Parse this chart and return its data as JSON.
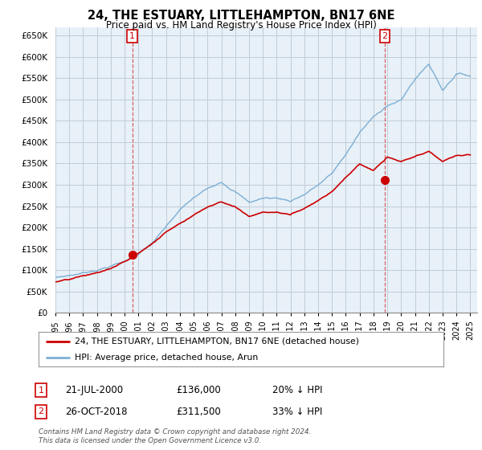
{
  "title": "24, THE ESTUARY, LITTLEHAMPTON, BN17 6NE",
  "subtitle": "Price paid vs. HM Land Registry's House Price Index (HPI)",
  "background_color": "#ffffff",
  "plot_bg_color": "#e8f0f8",
  "grid_color": "#c0ccd8",
  "hpi_color": "#7bafd4",
  "price_color": "#cc0000",
  "marker_color": "#cc0000",
  "ylim": [
    0,
    670000
  ],
  "yticks": [
    0,
    50000,
    100000,
    150000,
    200000,
    250000,
    300000,
    350000,
    400000,
    450000,
    500000,
    550000,
    600000,
    650000
  ],
  "ytick_labels": [
    "£0",
    "£50K",
    "£100K",
    "£150K",
    "£200K",
    "£250K",
    "£300K",
    "£350K",
    "£400K",
    "£450K",
    "£500K",
    "£550K",
    "£600K",
    "£650K"
  ],
  "sale1_date": 2000.55,
  "sale1_price": 136000,
  "sale2_date": 2018.82,
  "sale2_price": 311500,
  "legend_line1": "24, THE ESTUARY, LITTLEHAMPTON, BN17 6NE (detached house)",
  "legend_line2": "HPI: Average price, detached house, Arun",
  "note1_label": "1",
  "note1_date": "21-JUL-2000",
  "note1_price": "£136,000",
  "note1_hpi": "20% ↓ HPI",
  "note2_label": "2",
  "note2_date": "26-OCT-2018",
  "note2_price": "£311,500",
  "note2_hpi": "33% ↓ HPI",
  "footer": "Contains HM Land Registry data © Crown copyright and database right 2024.\nThis data is licensed under the Open Government Licence v3.0.",
  "xmin": 1995.0,
  "xmax": 2025.5,
  "xticks": [
    1995,
    1996,
    1997,
    1998,
    1999,
    2000,
    2001,
    2002,
    2003,
    2004,
    2005,
    2006,
    2007,
    2008,
    2009,
    2010,
    2011,
    2012,
    2013,
    2014,
    2015,
    2016,
    2017,
    2018,
    2019,
    2020,
    2021,
    2022,
    2023,
    2024,
    2025
  ],
  "hpi_years": [
    1995,
    1996,
    1997,
    1998,
    1999,
    2000,
    2001,
    2002,
    2003,
    2004,
    2005,
    2006,
    2007,
    2008,
    2009,
    2010,
    2011,
    2012,
    2013,
    2014,
    2015,
    2016,
    2017,
    2018,
    2019,
    2020,
    2021,
    2022,
    2023,
    2024,
    2025
  ],
  "hpi_vals": [
    83000,
    88000,
    94000,
    102000,
    112000,
    122000,
    140000,
    165000,
    200000,
    238000,
    265000,
    285000,
    305000,
    285000,
    258000,
    268000,
    268000,
    262000,
    278000,
    300000,
    325000,
    370000,
    420000,
    455000,
    485000,
    495000,
    545000,
    580000,
    520000,
    560000,
    555000
  ],
  "red_years": [
    1995,
    1996,
    1997,
    1998,
    1999,
    2000,
    2001,
    2002,
    2003,
    2004,
    2005,
    2006,
    2007,
    2008,
    2009,
    2010,
    2011,
    2012,
    2013,
    2014,
    2015,
    2016,
    2017,
    2018,
    2019,
    2020,
    2021,
    2022,
    2023,
    2024,
    2025
  ],
  "red_vals": [
    72000,
    76000,
    83000,
    90000,
    100000,
    115000,
    135000,
    158000,
    185000,
    208000,
    228000,
    248000,
    262000,
    250000,
    228000,
    238000,
    238000,
    232000,
    248000,
    268000,
    290000,
    325000,
    355000,
    340000,
    370000,
    358000,
    368000,
    378000,
    355000,
    368000,
    370000
  ]
}
